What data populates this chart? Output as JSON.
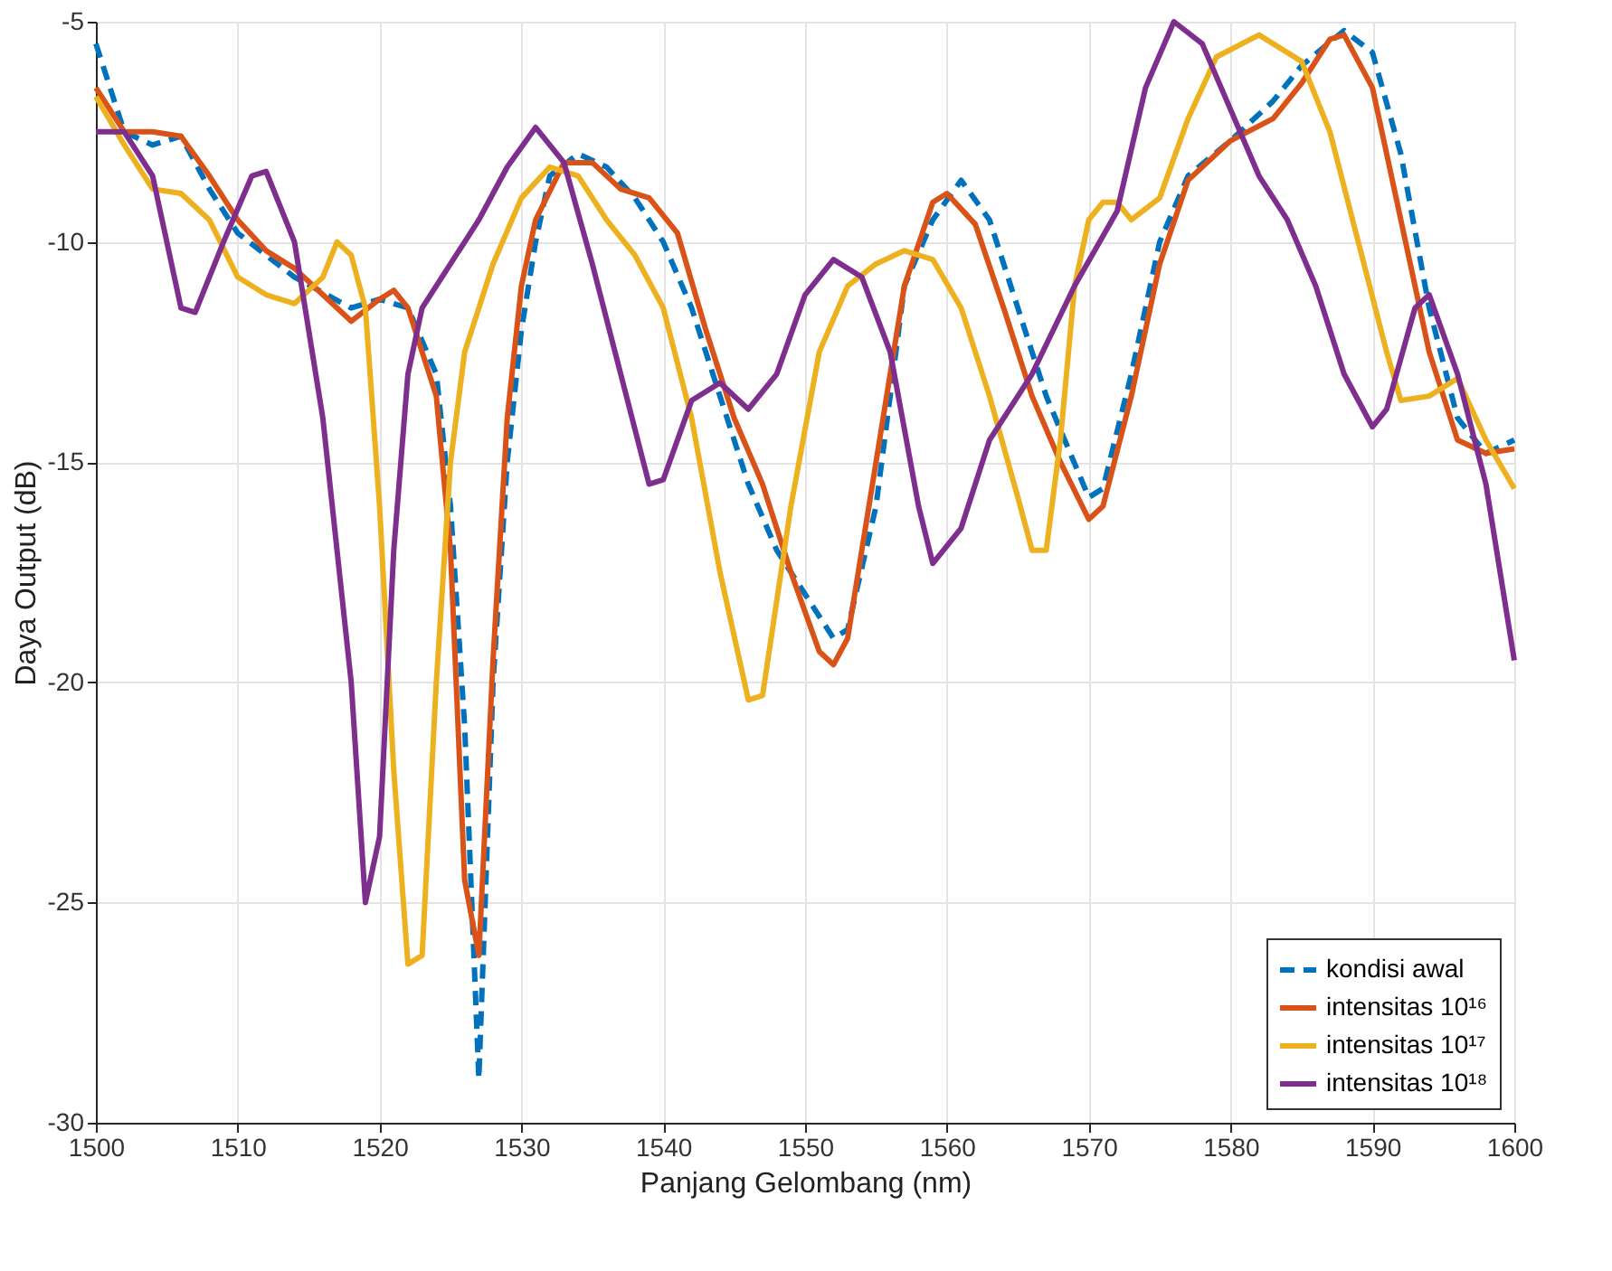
{
  "chart_data": {
    "type": "line",
    "xlabel": "Panjang Gelombang (nm)",
    "ylabel": "Daya Output (dB)",
    "xlim": [
      1500,
      1600
    ],
    "xticks": [
      1500,
      1510,
      1520,
      1530,
      1540,
      1550,
      1560,
      1570,
      1580,
      1590,
      1600
    ],
    "ylim": [
      -30,
      -5
    ],
    "yticks": [
      -30,
      -25,
      -20,
      -15,
      -10,
      -5
    ],
    "grid": true,
    "legend": "bottom right",
    "marker": "none",
    "series": [
      {
        "name": "kondisi awal",
        "color": "#0072bd",
        "line_style": "dashed",
        "x": [
          1500,
          1502,
          1504,
          1506,
          1508,
          1510,
          1514,
          1518,
          1520,
          1522,
          1524,
          1525,
          1526,
          1527,
          1528,
          1529,
          1530,
          1531,
          1532,
          1534,
          1536,
          1538,
          1540,
          1542,
          1544,
          1546,
          1548,
          1550,
          1552,
          1553,
          1555,
          1557,
          1559,
          1561,
          1563,
          1565,
          1567,
          1570,
          1571,
          1573,
          1575,
          1577,
          1580,
          1583,
          1585,
          1588,
          1590,
          1592,
          1594,
          1596,
          1598,
          1600
        ],
        "values": [
          -5.5,
          -7.5,
          -7.8,
          -7.6,
          -8.8,
          -9.8,
          -10.8,
          -11.5,
          -11.3,
          -11.5,
          -13,
          -16,
          -21,
          -29,
          -20,
          -15,
          -12,
          -10,
          -8.5,
          -8,
          -8.3,
          -9,
          -10,
          -11.5,
          -13.5,
          -15.5,
          -17,
          -18,
          -19,
          -18.8,
          -16,
          -11,
          -9.5,
          -8.6,
          -9.5,
          -11.5,
          -13.5,
          -15.8,
          -15.6,
          -13,
          -10,
          -8.5,
          -7.7,
          -6.8,
          -6,
          -5.2,
          -5.7,
          -8,
          -11.5,
          -14,
          -14.8,
          -14.5
        ]
      },
      {
        "name": "intensitas 10¹⁶",
        "color": "#d95319",
        "line_style": "solid",
        "x": [
          1500,
          1502,
          1504,
          1506,
          1508,
          1510,
          1512,
          1514,
          1516,
          1518,
          1520,
          1521,
          1522,
          1524,
          1525,
          1526,
          1527,
          1528,
          1529,
          1530,
          1531,
          1533,
          1535,
          1537,
          1539,
          1541,
          1543,
          1545,
          1547,
          1549,
          1551,
          1552,
          1553,
          1555,
          1557,
          1559,
          1560,
          1562,
          1564,
          1566,
          1568,
          1570,
          1571,
          1573,
          1575,
          1577,
          1580,
          1583,
          1585,
          1587,
          1588,
          1590,
          1592,
          1594,
          1596,
          1598,
          1600
        ],
        "values": [
          -6.5,
          -7.5,
          -7.5,
          -7.6,
          -8.5,
          -9.5,
          -10.2,
          -10.6,
          -11.2,
          -11.8,
          -11.3,
          -11.1,
          -11.5,
          -13.5,
          -17,
          -24.5,
          -26.2,
          -19.5,
          -14,
          -11,
          -9.5,
          -8.2,
          -8.2,
          -8.8,
          -9,
          -9.8,
          -12,
          -14,
          -15.5,
          -17.5,
          -19.3,
          -19.6,
          -19,
          -15,
          -11,
          -9.1,
          -8.9,
          -9.6,
          -11.5,
          -13.5,
          -15,
          -16.3,
          -16,
          -13.5,
          -10.5,
          -8.6,
          -7.7,
          -7.2,
          -6.4,
          -5.4,
          -5.3,
          -6.5,
          -9.5,
          -12.5,
          -14.5,
          -14.8,
          -14.7
        ]
      },
      {
        "name": "intensitas 10¹⁷",
        "color": "#edb120",
        "line_style": "solid",
        "x": [
          1500,
          1502,
          1504,
          1506,
          1508,
          1510,
          1512,
          1514,
          1516,
          1517,
          1518,
          1519,
          1520,
          1521,
          1522,
          1523,
          1524,
          1525,
          1526,
          1528,
          1530,
          1532,
          1534,
          1536,
          1538,
          1540,
          1542,
          1544,
          1546,
          1547,
          1549,
          1551,
          1553,
          1555,
          1557,
          1559,
          1561,
          1563,
          1565,
          1566,
          1567,
          1568,
          1569,
          1570,
          1571,
          1572,
          1573,
          1575,
          1577,
          1579,
          1582,
          1585,
          1587,
          1589,
          1591,
          1592,
          1594,
          1596,
          1598,
          1600
        ],
        "values": [
          -6.7,
          -7.8,
          -8.8,
          -8.9,
          -9.5,
          -10.8,
          -11.2,
          -11.4,
          -10.8,
          -10,
          -10.3,
          -11.5,
          -16,
          -22,
          -26.4,
          -26.2,
          -20,
          -15,
          -12.5,
          -10.5,
          -9,
          -8.3,
          -8.5,
          -9.5,
          -10.3,
          -11.5,
          -14,
          -17.5,
          -20.4,
          -20.3,
          -16,
          -12.5,
          -11,
          -10.5,
          -10.2,
          -10.4,
          -11.5,
          -13.5,
          -15.8,
          -17,
          -17,
          -14.5,
          -11,
          -9.5,
          -9.1,
          -9.1,
          -9.5,
          -9,
          -7.2,
          -5.8,
          -5.3,
          -5.9,
          -7.5,
          -10,
          -12.5,
          -13.6,
          -13.5,
          -13.1,
          -14.5,
          -15.6
        ]
      },
      {
        "name": "intensitas 10¹⁸",
        "color": "#7e2f8e",
        "line_style": "solid",
        "x": [
          1500,
          1502,
          1504,
          1506,
          1507,
          1509,
          1511,
          1512,
          1514,
          1516,
          1518,
          1519,
          1520,
          1521,
          1522,
          1523,
          1525,
          1527,
          1529,
          1531,
          1533,
          1535,
          1537,
          1539,
          1540,
          1542,
          1544,
          1546,
          1548,
          1550,
          1552,
          1554,
          1556,
          1558,
          1559,
          1561,
          1563,
          1566,
          1569,
          1572,
          1574,
          1576,
          1578,
          1580,
          1582,
          1584,
          1586,
          1588,
          1590,
          1591,
          1593,
          1594,
          1596,
          1598,
          1600
        ],
        "values": [
          -7.5,
          -7.5,
          -8.5,
          -11.5,
          -11.6,
          -10,
          -8.5,
          -8.4,
          -10,
          -14,
          -20,
          -25,
          -23.5,
          -17,
          -13,
          -11.5,
          -10.5,
          -9.5,
          -8.3,
          -7.4,
          -8.2,
          -10.5,
          -13,
          -15.5,
          -15.4,
          -13.6,
          -13.2,
          -13.8,
          -13,
          -11.2,
          -10.4,
          -10.8,
          -12.5,
          -16,
          -17.3,
          -16.5,
          -14.5,
          -13,
          -11,
          -9.3,
          -6.5,
          -5,
          -5.5,
          -7,
          -8.5,
          -9.5,
          -11,
          -13,
          -14.2,
          -13.8,
          -11.5,
          -11.2,
          -13,
          -15.5,
          -19.5
        ]
      }
    ]
  }
}
